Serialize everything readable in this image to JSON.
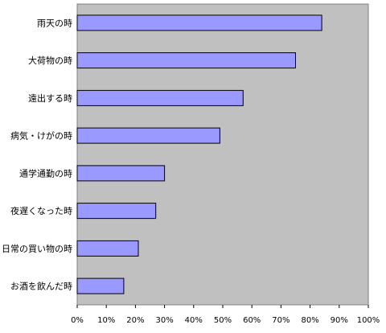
{
  "chart_data": {
    "type": "bar",
    "orientation": "horizontal",
    "categories": [
      "雨天の時",
      "大荷物の時",
      "遠出する時",
      "病気・けがの時",
      "通学通勤の時",
      "夜遅くなった時",
      "日常の買い物の時",
      "お酒を飲んだ時"
    ],
    "values": [
      84,
      75,
      57,
      49,
      30,
      27,
      21,
      16
    ],
    "xlim": [
      0,
      100
    ],
    "x_ticks": [
      "0%",
      "10%",
      "20%",
      "30%",
      "40%",
      "50%",
      "60%",
      "70%",
      "80%",
      "90%",
      "100%"
    ],
    "grid": false,
    "legend": "none",
    "colors": {
      "plot_background": "#c0c0c0",
      "bar_fill": "#9999ff",
      "bar_stroke": "#000000",
      "page_background": "#ffffff"
    }
  }
}
